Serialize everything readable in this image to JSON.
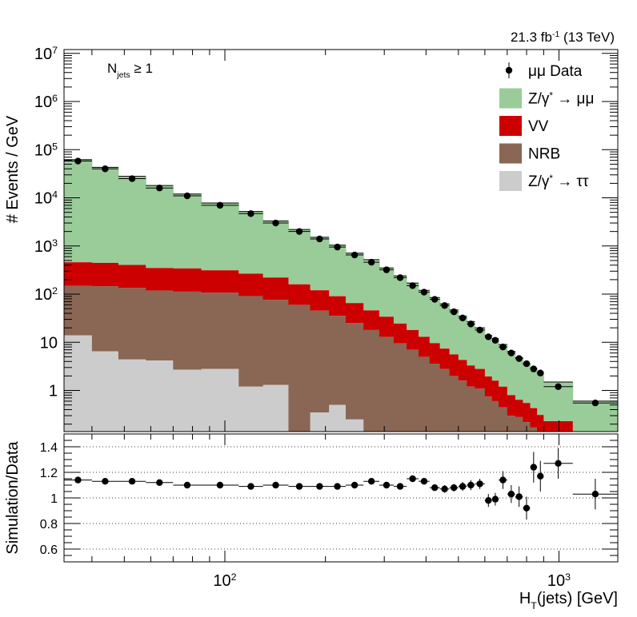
{
  "chart_data": {
    "type": "stacked-histogram-with-ratio",
    "lumi_label": {
      "main": "21.3 fb",
      "sup": "-1",
      "tail": " (13 TeV)"
    },
    "region_label": {
      "main": "N",
      "sub": "jets",
      "tail": " ≥ 1"
    },
    "ylabel_top": "# Events / GeV",
    "ylabel_bottom": "Simulation/Data",
    "xlabel": {
      "main": "H",
      "sub": "T",
      "tail": "(jets) [GeV]"
    },
    "x_axis": {
      "scale": "log",
      "range": [
        33,
        1500
      ],
      "major_ticks": [
        100,
        1000
      ],
      "major_tick_labels": [
        {
          "base": "10",
          "exp": "2"
        },
        {
          "base": "10",
          "exp": "3"
        }
      ]
    },
    "y_axis_top": {
      "scale": "log",
      "range": [
        0.14,
        12000000
      ],
      "tick_labels": [
        {
          "v": 10000000,
          "base": "10",
          "exp": "7"
        },
        {
          "v": 1000000,
          "base": "10",
          "exp": "6"
        },
        {
          "v": 100000,
          "base": "10",
          "exp": "5"
        },
        {
          "v": 10000,
          "base": "10",
          "exp": "4"
        },
        {
          "v": 1000,
          "base": "10",
          "exp": "3"
        },
        {
          "v": 100,
          "base": "10",
          "exp": "2"
        },
        {
          "v": 10,
          "base": "10",
          "exp": ""
        },
        {
          "v": 1,
          "base": "1",
          "exp": ""
        }
      ]
    },
    "y_axis_bottom": {
      "scale": "linear",
      "range": [
        0.5,
        1.5
      ],
      "ticks": [
        0.6,
        0.8,
        1.0,
        1.2,
        1.4
      ],
      "tick_labels": [
        "0.6",
        "0.8",
        "1",
        "1.2",
        "1.4"
      ],
      "gridlines": [
        0.6,
        0.8,
        1.0,
        1.2,
        1.4
      ]
    },
    "legend": {
      "position": "top-right",
      "entries": [
        {
          "key": "data",
          "label_prefix": "μμ",
          "label": " Data",
          "style": "marker"
        },
        {
          "key": "dy_mumu",
          "label_prefix": "Z/γ",
          "label_sup": "*",
          "label": " → μμ",
          "style": "fill",
          "color": "#99cc99"
        },
        {
          "key": "vv",
          "label": "VV",
          "style": "fill",
          "color": "#cc0000"
        },
        {
          "key": "nrb",
          "label": "NRB",
          "style": "fill",
          "color": "#8a6654"
        },
        {
          "key": "dy_tautau",
          "label_prefix": "Z/γ",
          "label_sup": "*",
          "label": " → ττ",
          "style": "fill",
          "color": "#cccccc"
        }
      ]
    },
    "bins": [
      {
        "lo": 33,
        "hi": 40,
        "data": 58000,
        "dy_tautau": 14,
        "nrb": 135,
        "vv": 310,
        "total": 62000,
        "ratio": 1.14,
        "ratio_err": 0.015
      },
      {
        "lo": 40,
        "hi": 48,
        "data": 40000,
        "dy_tautau": 6.5,
        "nrb": 140,
        "vv": 300,
        "total": 43000,
        "ratio": 1.13,
        "ratio_err": 0.015
      },
      {
        "lo": 48,
        "hi": 58,
        "data": 25000,
        "dy_tautau": 4.4,
        "nrb": 130,
        "vv": 270,
        "total": 28000,
        "ratio": 1.13,
        "ratio_err": 0.015
      },
      {
        "lo": 58,
        "hi": 70,
        "data": 16000,
        "dy_tautau": 4.2,
        "nrb": 115,
        "vv": 230,
        "total": 18000,
        "ratio": 1.12,
        "ratio_err": 0.015
      },
      {
        "lo": 70,
        "hi": 85,
        "data": 11000,
        "dy_tautau": 2.7,
        "nrb": 110,
        "vv": 230,
        "total": 12000,
        "ratio": 1.1,
        "ratio_err": 0.015
      },
      {
        "lo": 85,
        "hi": 110,
        "data": 7000,
        "dy_tautau": 2.8,
        "nrb": 105,
        "vv": 205,
        "total": 7800,
        "ratio": 1.1,
        "ratio_err": 0.015
      },
      {
        "lo": 110,
        "hi": 130,
        "data": 4700,
        "dy_tautau": 1.2,
        "nrb": 90,
        "vv": 175,
        "total": 5200,
        "ratio": 1.09,
        "ratio_err": 0.015
      },
      {
        "lo": 130,
        "hi": 155,
        "data": 3000,
        "dy_tautau": 1.3,
        "nrb": 75,
        "vv": 145,
        "total": 3300,
        "ratio": 1.1,
        "ratio_err": 0.015
      },
      {
        "lo": 155,
        "hi": 180,
        "data": 2000,
        "dy_tautau": 0.0,
        "nrb": 60,
        "vv": 100,
        "total": 2200,
        "ratio": 1.09,
        "ratio_err": 0.015
      },
      {
        "lo": 180,
        "hi": 205,
        "data": 1400,
        "dy_tautau": 0.35,
        "nrb": 45,
        "vv": 75,
        "total": 1520,
        "ratio": 1.09,
        "ratio_err": 0.015
      },
      {
        "lo": 205,
        "hi": 230,
        "data": 950,
        "dy_tautau": 0.5,
        "nrb": 35,
        "vv": 55,
        "total": 1040,
        "ratio": 1.09,
        "ratio_err": 0.015
      },
      {
        "lo": 230,
        "hi": 260,
        "data": 650,
        "dy_tautau": 0.25,
        "nrb": 25,
        "vv": 40,
        "total": 710,
        "ratio": 1.1,
        "ratio_err": 0.015
      },
      {
        "lo": 260,
        "hi": 290,
        "data": 460,
        "dy_tautau": 0.0,
        "nrb": 18,
        "vv": 28,
        "total": 520,
        "ratio": 1.13,
        "ratio_err": 0.015
      },
      {
        "lo": 290,
        "hi": 320,
        "data": 320,
        "dy_tautau": 0.0,
        "nrb": 13,
        "vv": 21,
        "total": 350,
        "ratio": 1.1,
        "ratio_err": 0.015
      },
      {
        "lo": 320,
        "hi": 350,
        "data": 220,
        "dy_tautau": 0.0,
        "nrb": 9.5,
        "vv": 15,
        "total": 240,
        "ratio": 1.09,
        "ratio_err": 0.02
      },
      {
        "lo": 350,
        "hi": 380,
        "data": 150,
        "dy_tautau": 0.0,
        "nrb": 7,
        "vv": 11,
        "total": 170,
        "ratio": 1.15,
        "ratio_err": 0.02
      },
      {
        "lo": 380,
        "hi": 410,
        "data": 110,
        "dy_tautau": 0.0,
        "nrb": 5,
        "vv": 8,
        "total": 120,
        "ratio": 1.13,
        "ratio_err": 0.02
      },
      {
        "lo": 410,
        "hi": 440,
        "data": 78,
        "dy_tautau": 0.0,
        "nrb": 3.6,
        "vv": 6,
        "total": 85,
        "ratio": 1.08,
        "ratio_err": 0.025
      },
      {
        "lo": 440,
        "hi": 470,
        "data": 58,
        "dy_tautau": 0.0,
        "nrb": 2.8,
        "vv": 4.6,
        "total": 63,
        "ratio": 1.07,
        "ratio_err": 0.03
      },
      {
        "lo": 470,
        "hi": 500,
        "data": 43,
        "dy_tautau": 0.0,
        "nrb": 2.0,
        "vv": 3.6,
        "total": 47,
        "ratio": 1.08,
        "ratio_err": 0.03
      },
      {
        "lo": 500,
        "hi": 530,
        "data": 32,
        "dy_tautau": 0.0,
        "nrb": 1.6,
        "vv": 2.7,
        "total": 35,
        "ratio": 1.09,
        "ratio_err": 0.035
      },
      {
        "lo": 530,
        "hi": 560,
        "data": 24,
        "dy_tautau": 0.0,
        "nrb": 1.2,
        "vv": 2.1,
        "total": 27,
        "ratio": 1.1,
        "ratio_err": 0.04
      },
      {
        "lo": 560,
        "hi": 600,
        "data": 18,
        "dy_tautau": 0.0,
        "nrb": 1.1,
        "vv": 1.7,
        "total": 20,
        "ratio": 1.11,
        "ratio_err": 0.04
      },
      {
        "lo": 600,
        "hi": 630,
        "data": 13,
        "dy_tautau": 0.0,
        "nrb": 0.75,
        "vv": 1.2,
        "total": 14,
        "ratio": 0.98,
        "ratio_err": 0.05
      },
      {
        "lo": 630,
        "hi": 660,
        "data": 11,
        "dy_tautau": 0.0,
        "nrb": 0.6,
        "vv": 1.0,
        "total": 12,
        "ratio": 0.99,
        "ratio_err": 0.05
      },
      {
        "lo": 660,
        "hi": 700,
        "data": 8,
        "dy_tautau": 0.0,
        "nrb": 0.45,
        "vv": 0.75,
        "total": 9,
        "ratio": 1.14,
        "ratio_err": 0.07
      },
      {
        "lo": 700,
        "hi": 740,
        "data": 6,
        "dy_tautau": 0.0,
        "nrb": 0.3,
        "vv": 0.5,
        "total": 6.5,
        "ratio": 1.03,
        "ratio_err": 0.07
      },
      {
        "lo": 740,
        "hi": 780,
        "data": 4.6,
        "dy_tautau": 0.0,
        "nrb": 0.28,
        "vv": 0.36,
        "total": 4.8,
        "ratio": 1.01,
        "ratio_err": 0.08
      },
      {
        "lo": 780,
        "hi": 820,
        "data": 3.6,
        "dy_tautau": 0.0,
        "nrb": 0.22,
        "vv": 0.33,
        "total": 3.5,
        "ratio": 0.92,
        "ratio_err": 0.09
      },
      {
        "lo": 820,
        "hi": 860,
        "data": 2.8,
        "dy_tautau": 0.0,
        "nrb": 0.17,
        "vv": 0.26,
        "total": 2.9,
        "ratio": 1.24,
        "ratio_err": 0.12
      },
      {
        "lo": 860,
        "hi": 900,
        "data": 2.3,
        "dy_tautau": 0.0,
        "nrb": 0.12,
        "vv": 0.19,
        "total": 2.4,
        "ratio": 1.17,
        "ratio_err": 0.12
      },
      {
        "lo": 900,
        "hi": 1100,
        "data": 1.2,
        "dy_tautau": 0.0,
        "nrb": 0.1,
        "vv": 0.13,
        "total": 1.5,
        "ratio": 1.27,
        "ratio_err": 0.12
      },
      {
        "lo": 1100,
        "hi": 1500,
        "data": 0.55,
        "dy_tautau": 0.0,
        "nrb": 0.05,
        "vv": 0.06,
        "total": 0.6,
        "ratio": 1.03,
        "ratio_err": 0.12
      }
    ]
  }
}
